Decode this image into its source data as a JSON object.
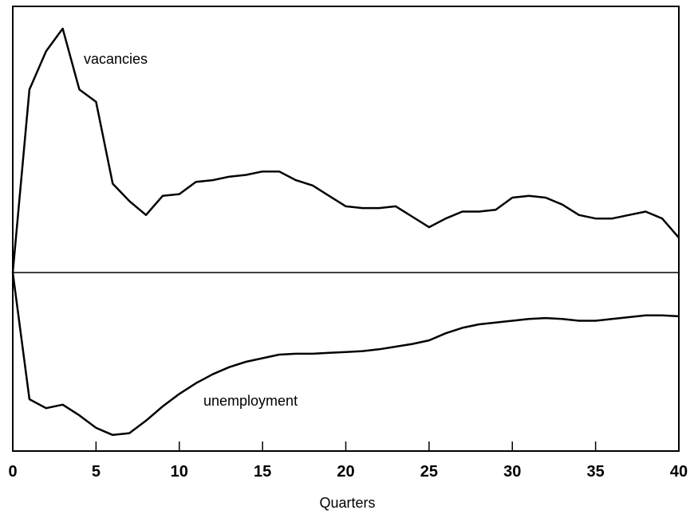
{
  "chart_data": {
    "type": "line",
    "xlabel": "Quarters",
    "ylabel": "",
    "xlim": [
      0,
      40
    ],
    "ylim": [
      -1.0,
      1.5
    ],
    "zero_line": true,
    "grid": false,
    "xticks": [
      0,
      5,
      10,
      15,
      20,
      25,
      30,
      35,
      40
    ],
    "series": [
      {
        "name": "vacancies",
        "x": [
          0,
          1,
          2,
          3,
          4,
          5,
          6,
          7,
          8,
          9,
          10,
          11,
          12,
          13,
          14,
          15,
          16,
          17,
          18,
          19,
          20,
          21,
          22,
          23,
          24,
          25,
          26,
          27,
          28,
          29,
          30,
          31,
          32,
          33,
          34,
          35,
          36,
          37,
          38,
          39,
          40
        ],
        "y": [
          0,
          1.05,
          1.27,
          1.4,
          1.05,
          0.98,
          0.51,
          0.41,
          0.33,
          0.44,
          0.45,
          0.52,
          0.53,
          0.55,
          0.56,
          0.58,
          0.58,
          0.53,
          0.5,
          0.44,
          0.38,
          0.37,
          0.37,
          0.38,
          0.32,
          0.26,
          0.31,
          0.35,
          0.35,
          0.36,
          0.43,
          0.44,
          0.43,
          0.39,
          0.33,
          0.31,
          0.31,
          0.33,
          0.35,
          0.31,
          0.2
        ]
      },
      {
        "name": "unemployment",
        "x": [
          0,
          1,
          2,
          3,
          4,
          5,
          6,
          7,
          8,
          9,
          10,
          11,
          12,
          13,
          14,
          15,
          16,
          17,
          18,
          19,
          20,
          21,
          22,
          23,
          24,
          25,
          26,
          27,
          28,
          29,
          30,
          31,
          32,
          33,
          34,
          35,
          36,
          37,
          38,
          39,
          40
        ],
        "y": [
          0,
          -0.71,
          -0.76,
          -0.74,
          -0.8,
          -0.87,
          -0.91,
          -0.9,
          -0.83,
          -0.75,
          -0.68,
          -0.62,
          -0.57,
          -0.53,
          -0.5,
          -0.48,
          -0.46,
          -0.455,
          -0.455,
          -0.45,
          -0.445,
          -0.44,
          -0.43,
          -0.415,
          -0.4,
          -0.38,
          -0.34,
          -0.31,
          -0.29,
          -0.28,
          -0.27,
          -0.26,
          -0.255,
          -0.26,
          -0.27,
          -0.27,
          -0.26,
          -0.25,
          -0.24,
          -0.24,
          -0.245
        ]
      }
    ]
  }
}
